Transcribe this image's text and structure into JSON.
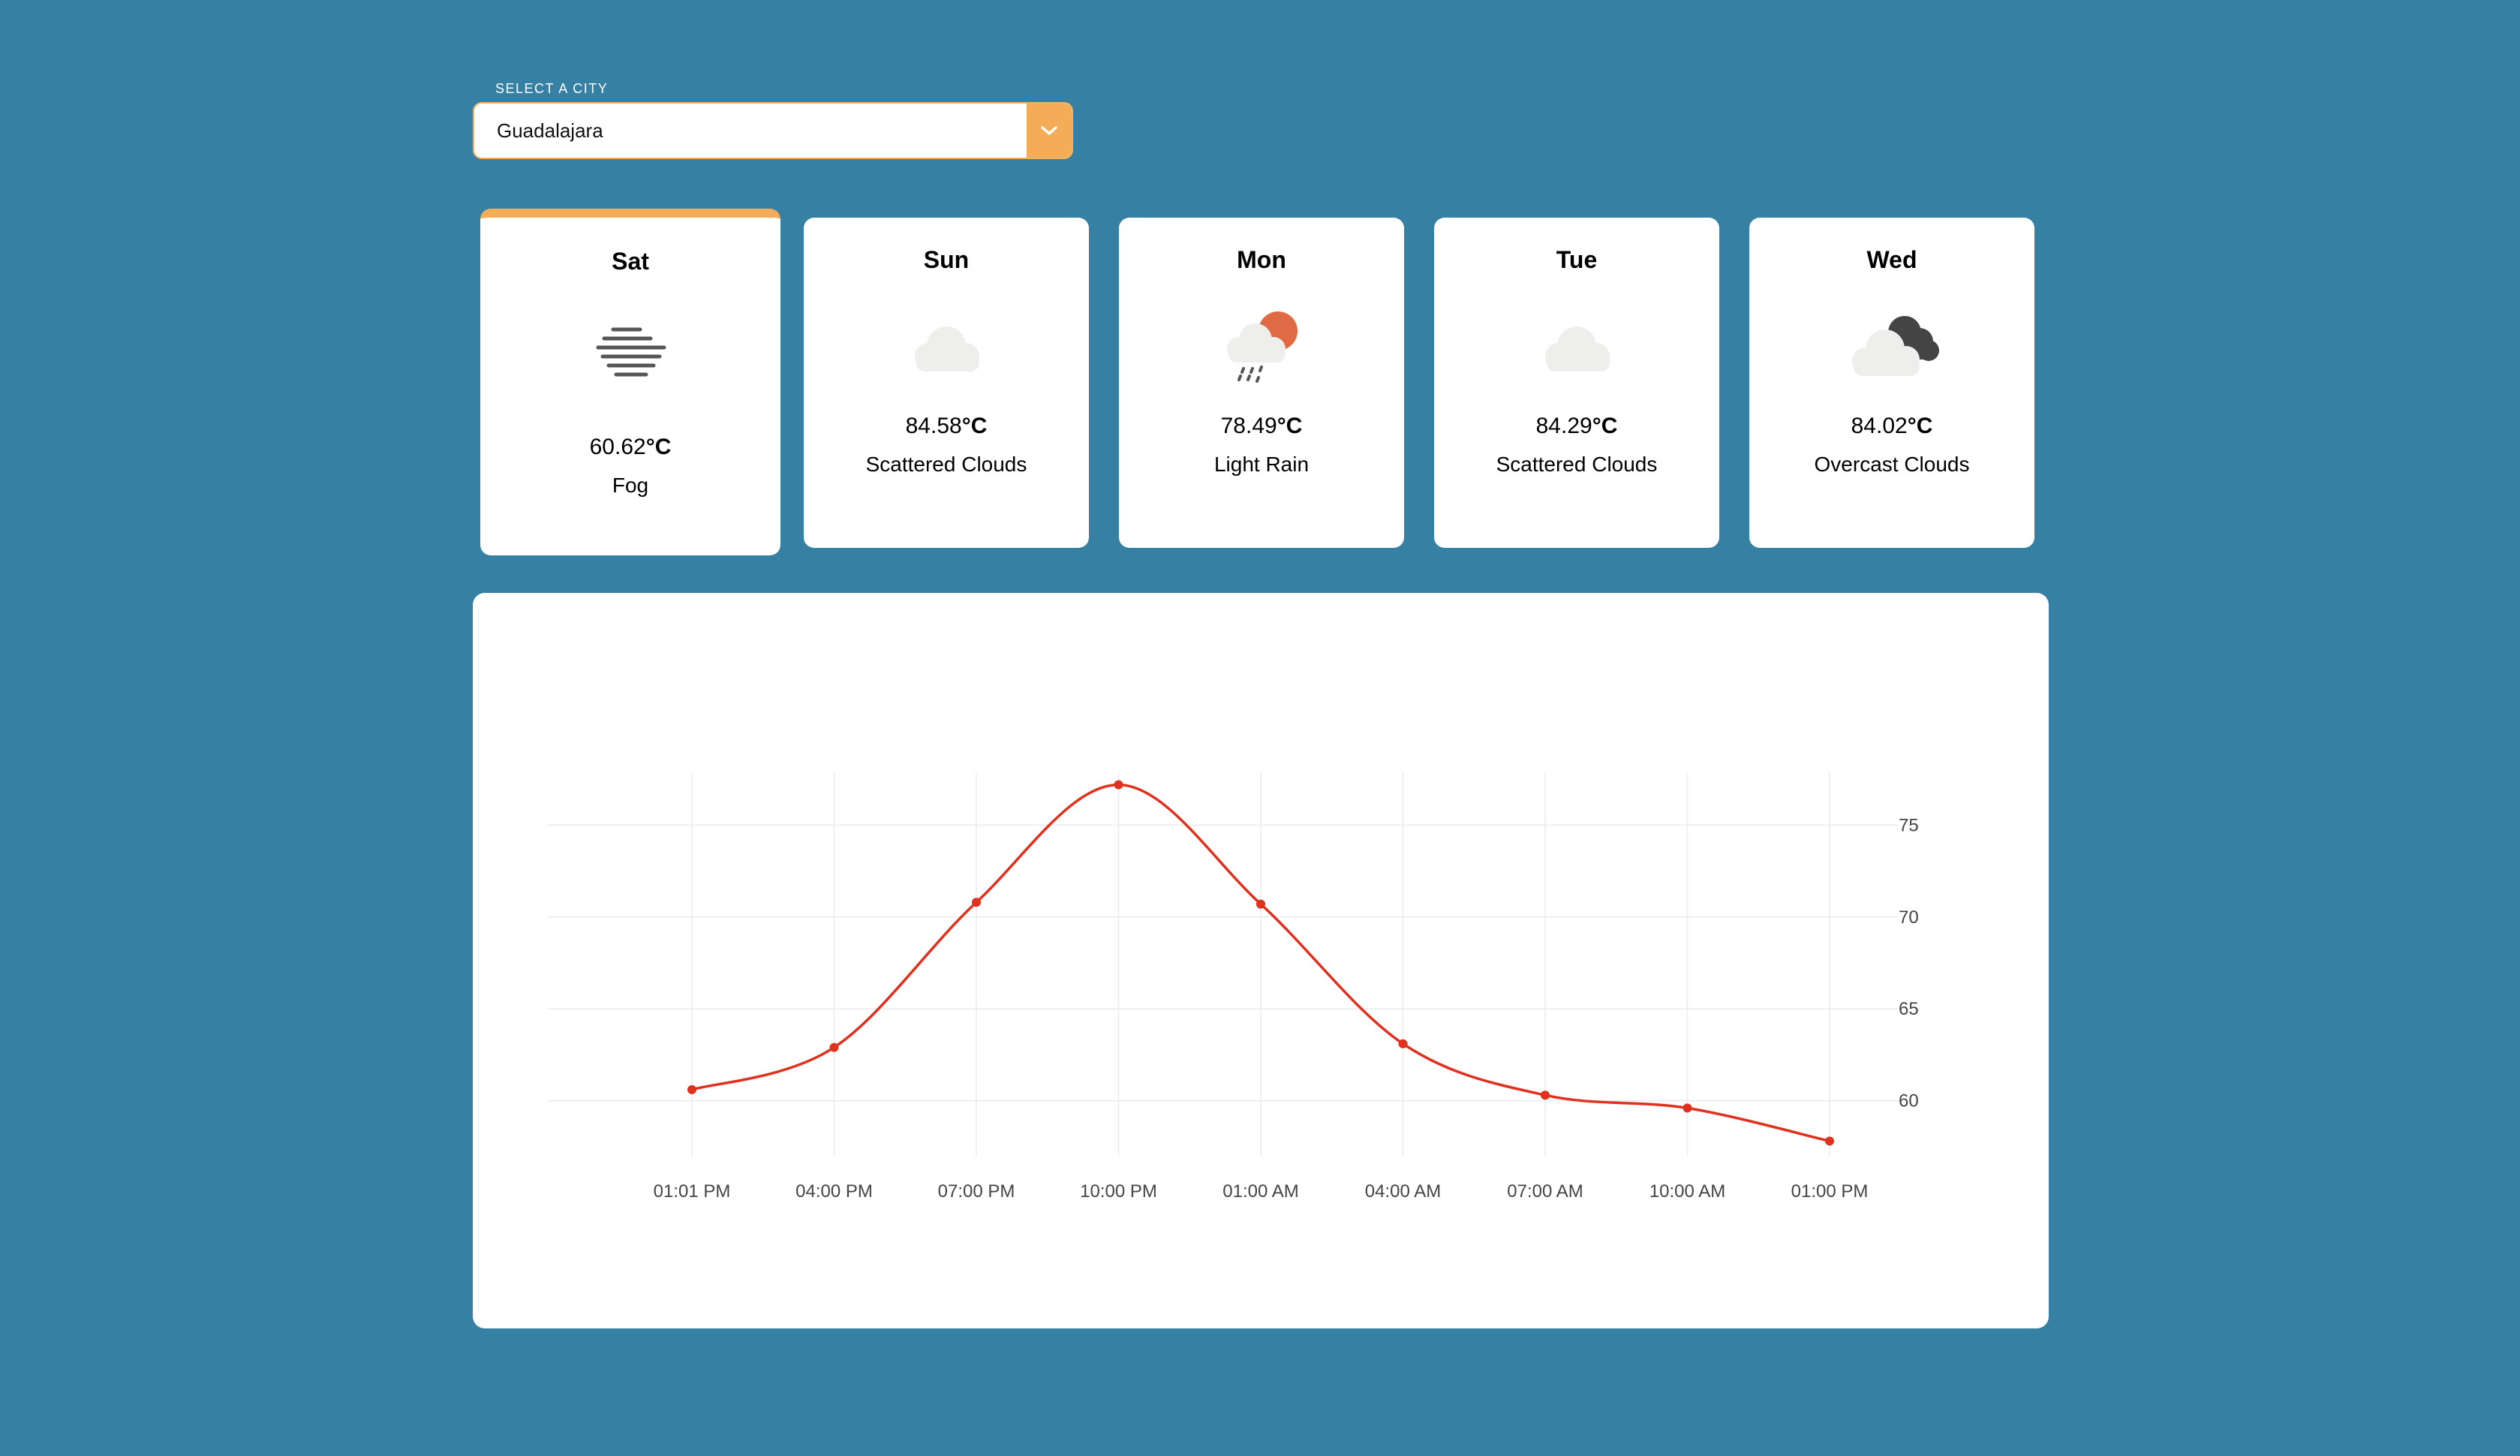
{
  "city_select": {
    "label": "Select a city",
    "value": "Guadalajara",
    "accent_color": "#f5ac58"
  },
  "forecast": [
    {
      "day": "Sat",
      "temp": "60.62",
      "unit": "°C",
      "description": "Fog",
      "icon": "fog-icon",
      "selected": true
    },
    {
      "day": "Sun",
      "temp": "84.58",
      "unit": "°C",
      "description": "Scattered Clouds",
      "icon": "cloud-icon",
      "selected": false
    },
    {
      "day": "Mon",
      "temp": "78.49",
      "unit": "°C",
      "description": "Light Rain",
      "icon": "sun-rain-cloud-icon",
      "selected": false
    },
    {
      "day": "Tue",
      "temp": "84.29",
      "unit": "°C",
      "description": "Scattered Clouds",
      "icon": "cloud-icon",
      "selected": false
    },
    {
      "day": "Wed",
      "temp": "84.02",
      "unit": "°C",
      "description": "Overcast Clouds",
      "icon": "overcast-cloud-icon",
      "selected": false
    }
  ],
  "colors": {
    "background": "#3680a3",
    "line": "#e0301e",
    "accent": "#f5ac58"
  },
  "chart_data": {
    "type": "line",
    "title": "",
    "xlabel": "",
    "ylabel": "",
    "categories": [
      "01:01 PM",
      "04:00 PM",
      "07:00 PM",
      "10:00 PM",
      "01:00 AM",
      "04:00 AM",
      "07:00 AM",
      "10:00 AM",
      "01:00 PM"
    ],
    "series": [
      {
        "values": [
          60.6,
          62.9,
          70.8,
          77.2,
          70.7,
          63.1,
          60.3,
          59.6,
          57.8
        ]
      }
    ],
    "yticks": [
      60,
      65,
      70,
      75
    ],
    "ylim": [
      57,
      78
    ],
    "y_axis_side": "right",
    "grid": true,
    "smooth": true
  }
}
